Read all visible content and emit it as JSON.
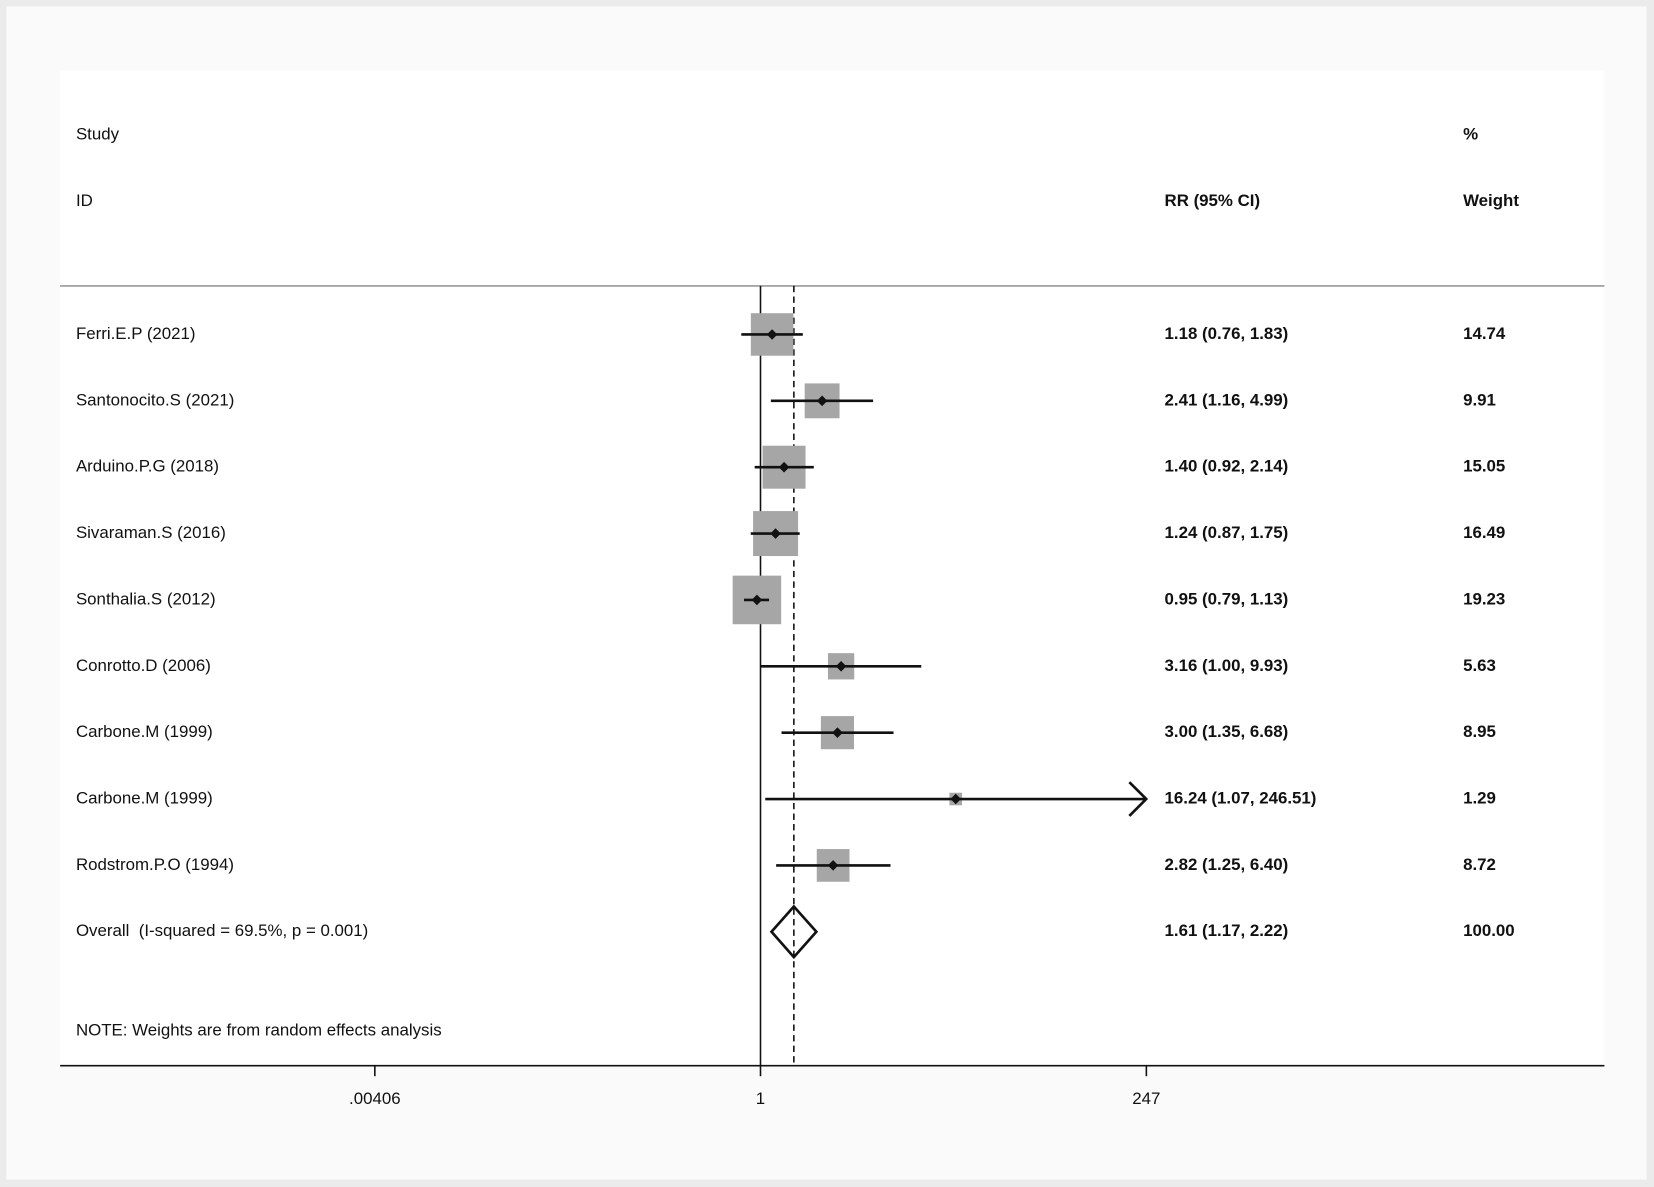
{
  "chart_data": {
    "type": "forest",
    "headers": {
      "study": "Study",
      "id": "ID",
      "rr": "RR (95% CI)",
      "pct": "%",
      "weight": "Weight"
    },
    "studies": [
      "Ferri.E.P (2021)",
      "Santonocito.S (2021)",
      "Arduino.P.G (2018)",
      "Sivaraman.S (2016)",
      "Sonthalia.S (2012)",
      "Conrotto.D (2006)",
      "Carbone.M (1999)",
      "Carbone.M (1999)",
      "Rodstrom.P.O (1994)"
    ],
    "values": [
      1.18,
      2.41,
      1.4,
      1.24,
      0.95,
      3.16,
      3.0,
      16.24,
      2.82
    ],
    "lower": [
      0.76,
      1.16,
      0.92,
      0.87,
      0.79,
      1.0,
      1.35,
      1.07,
      1.25
    ],
    "upper": [
      1.83,
      4.99,
      2.14,
      1.75,
      1.13,
      9.93,
      6.68,
      246.51,
      6.4
    ],
    "value_labels": [
      "1.18 (0.76, 1.83)",
      "2.41 (1.16, 4.99)",
      "1.40 (0.92, 2.14)",
      "1.24 (0.87, 1.75)",
      "0.95 (0.79, 1.13)",
      "3.16 (1.00, 9.93)",
      "3.00 (1.35, 6.68)",
      "16.24 (1.07, 246.51)",
      "2.82 (1.25, 6.40)"
    ],
    "weights": [
      14.74,
      9.91,
      15.05,
      16.49,
      19.23,
      5.63,
      8.95,
      1.29,
      8.72
    ],
    "weight_labels": [
      "14.74",
      "9.91",
      "15.05",
      "16.49",
      "19.23",
      "5.63",
      "8.95",
      "1.29",
      "8.72"
    ],
    "arrows": [
      false,
      false,
      false,
      false,
      false,
      false,
      false,
      true,
      false
    ],
    "overall": {
      "label": "Overall  (I-squared = 69.5%, p = 0.001)",
      "value": 1.61,
      "lower": 1.17,
      "upper": 2.22,
      "value_label": "1.61 (1.17, 2.22)",
      "weight": 100,
      "weight_label": "100.00"
    },
    "note": "NOTE: Weights are from random effects analysis",
    "xscale": "log",
    "xlim": [
      4.54e-05,
      171000
    ],
    "xticks": [
      {
        "value": 0.00406,
        "label": ".00406"
      },
      1,
      247
    ],
    "box_color": "#a6a6a6"
  }
}
